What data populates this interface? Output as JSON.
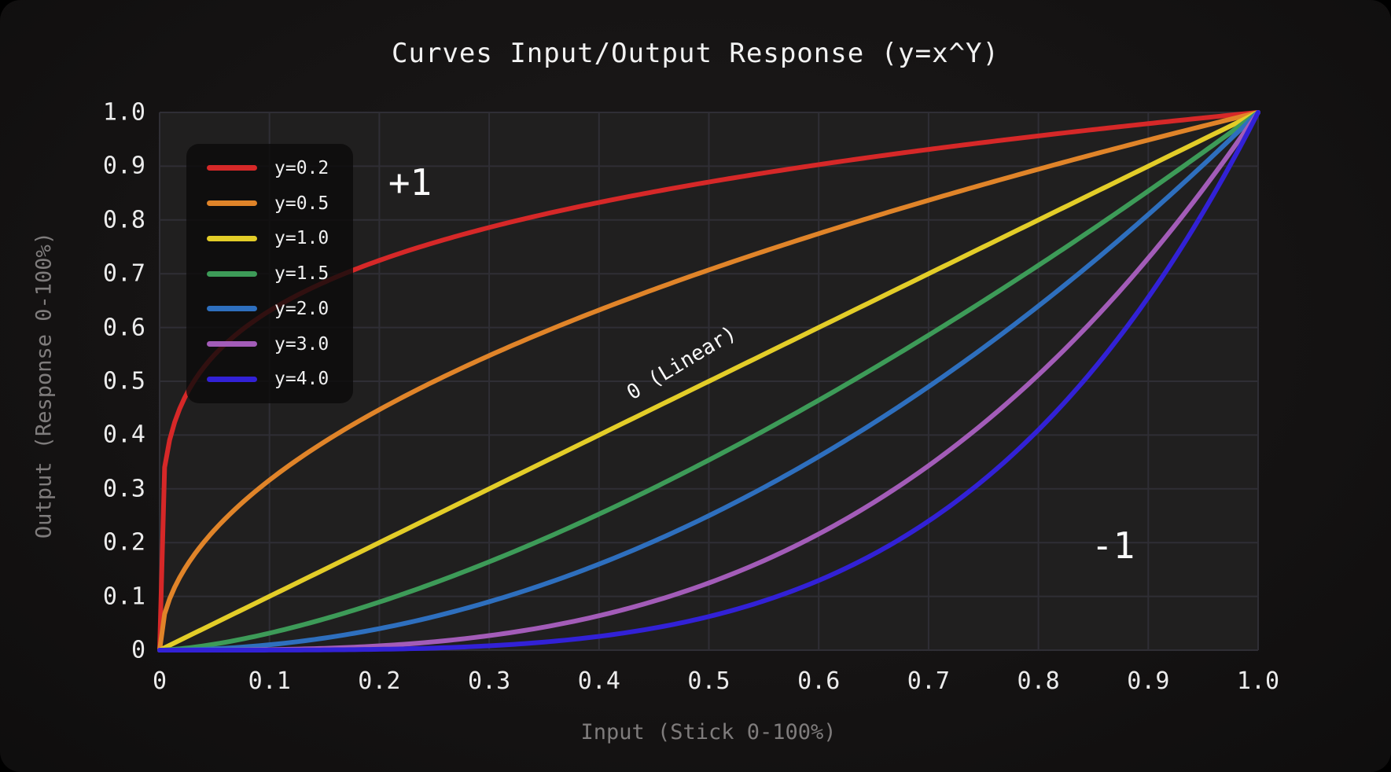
{
  "title": "Curves Input/Output Response (y=x^Y)",
  "chart_data": {
    "type": "line",
    "title": "Curves Input/Output Response (y=x^Y)",
    "xlabel": "Input (Stick 0-100%)",
    "ylabel": "Output (Response 0-100%)",
    "formula": "y = x^gamma",
    "xlim": [
      0,
      1
    ],
    "ylim": [
      0,
      1
    ],
    "grid": true,
    "legend_position": "upper-left",
    "x_ticks": [
      "0",
      "0.1",
      "0.2",
      "0.3",
      "0.4",
      "0.5",
      "0.6",
      "0.7",
      "0.8",
      "0.9",
      "1.0"
    ],
    "y_ticks": [
      "1.0",
      "0.9",
      "0.8",
      "0.7",
      "0.6",
      "0.5",
      "0.4",
      "0.3",
      "0.2",
      "0.1",
      "0"
    ],
    "x_sample": [
      0,
      0.1,
      0.2,
      0.3,
      0.4,
      0.5,
      0.6,
      0.7,
      0.8,
      0.9,
      1.0
    ],
    "series": [
      {
        "name": "y=0.2",
        "gamma": 0.2,
        "color": "#d62828",
        "values": [
          0,
          0.631,
          0.725,
          0.786,
          0.833,
          0.871,
          0.903,
          0.931,
          0.956,
          0.979,
          1
        ]
      },
      {
        "name": "y=0.5",
        "gamma": 0.5,
        "color": "#e08429",
        "values": [
          0,
          0.316,
          0.447,
          0.548,
          0.632,
          0.707,
          0.775,
          0.837,
          0.894,
          0.949,
          1
        ]
      },
      {
        "name": "y=1.0",
        "gamma": 1.0,
        "color": "#e3cd28",
        "values": [
          0,
          0.1,
          0.2,
          0.3,
          0.4,
          0.5,
          0.6,
          0.7,
          0.8,
          0.9,
          1
        ]
      },
      {
        "name": "y=1.5",
        "gamma": 1.5,
        "color": "#3d9b58",
        "values": [
          0,
          0.032,
          0.089,
          0.164,
          0.253,
          0.354,
          0.465,
          0.586,
          0.716,
          0.854,
          1
        ]
      },
      {
        "name": "y=2.0",
        "gamma": 2.0,
        "color": "#2e6fbe",
        "values": [
          0,
          0.01,
          0.04,
          0.09,
          0.16,
          0.25,
          0.36,
          0.49,
          0.64,
          0.81,
          1
        ]
      },
      {
        "name": "y=3.0",
        "gamma": 3.0,
        "color": "#a35cb8",
        "values": [
          0,
          0.001,
          0.008,
          0.027,
          0.064,
          0.125,
          0.216,
          0.343,
          0.512,
          0.729,
          1
        ]
      },
      {
        "name": "y=4.0",
        "gamma": 4.0,
        "color": "#3221d6",
        "values": [
          0,
          0.0001,
          0.0016,
          0.0081,
          0.0256,
          0.0625,
          0.1296,
          0.2401,
          0.4096,
          0.6561,
          1
        ]
      }
    ],
    "annotations": [
      {
        "text": "+1",
        "fx": 0.228,
        "fy": 0.87,
        "rotation": 0,
        "size": 46
      },
      {
        "text": "0 (Linear)",
        "fx": 0.475,
        "fy": 0.534,
        "rotation": -31,
        "size": 26
      },
      {
        "text": "-1",
        "fx": 0.868,
        "fy": 0.194,
        "rotation": 0,
        "size": 46
      }
    ],
    "colors": {
      "plot_bg": "#201f1f",
      "grid": "#2f2e35",
      "tick_label": "#ececec",
      "axis_label": "#7f7c7c",
      "title": "#f2f2f2",
      "legend_bg": "#0c0b0b"
    }
  }
}
